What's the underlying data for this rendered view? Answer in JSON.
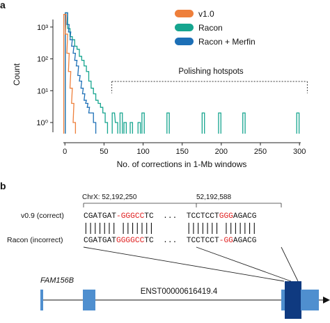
{
  "panel_a": {
    "label": "a",
    "ylabel": "Count",
    "xlabel": "No. of corrections in 1-Mb windows",
    "annotation": "Polishing hotspots",
    "colors": {
      "v1.0": "#ee7f3b",
      "Racon": "#16a58f",
      "Racon + Merfin": "#1c6fb6"
    }
  },
  "chart_data": {
    "type": "line",
    "xlim": [
      -10,
      315
    ],
    "ylim_log10": [
      -0.35,
      3.5
    ],
    "xticks": [
      "0",
      "50",
      "100",
      "150",
      "200",
      "250",
      "300"
    ],
    "yticks": [
      "10⁰",
      "10¹",
      "10²",
      "10³"
    ],
    "legend_placement": "top-right",
    "hotspot_range": [
      60,
      310
    ],
    "series": [
      {
        "name": "v1.0",
        "values": [
          [
            0,
            2500
          ],
          [
            2,
            600
          ],
          [
            4,
            150
          ],
          [
            6,
            40
          ],
          [
            8,
            12
          ],
          [
            10,
            4
          ],
          [
            12,
            1
          ]
        ]
      },
      {
        "name": "Racon",
        "values": [
          [
            2,
            2800
          ],
          [
            5,
            900
          ],
          [
            8,
            500
          ],
          [
            11,
            400
          ],
          [
            14,
            250
          ],
          [
            17,
            200
          ],
          [
            20,
            120
          ],
          [
            23,
            90
          ],
          [
            26,
            60
          ],
          [
            29,
            40
          ],
          [
            32,
            20
          ],
          [
            35,
            12
          ],
          [
            38,
            8
          ],
          [
            41,
            5
          ],
          [
            44,
            4
          ],
          [
            47,
            3
          ],
          [
            50,
            2
          ],
          [
            53,
            1
          ],
          [
            62,
            2
          ],
          [
            66,
            1
          ],
          [
            72,
            2
          ],
          [
            77,
            1
          ],
          [
            85,
            1
          ],
          [
            95,
            1
          ],
          [
            100,
            2
          ],
          [
            132,
            2
          ],
          [
            177,
            2
          ],
          [
            198,
            2
          ],
          [
            229,
            2
          ],
          [
            298,
            2
          ]
        ]
      },
      {
        "name": "Racon + Merfin",
        "values": [
          [
            2,
            2800
          ],
          [
            4,
            1200
          ],
          [
            6,
            700
          ],
          [
            8,
            400
          ],
          [
            10,
            250
          ],
          [
            12,
            150
          ],
          [
            14,
            90
          ],
          [
            16,
            60
          ],
          [
            18,
            30
          ],
          [
            20,
            20
          ],
          [
            22,
            12
          ],
          [
            24,
            8
          ],
          [
            26,
            5
          ],
          [
            28,
            4
          ],
          [
            30,
            3
          ],
          [
            32,
            2
          ],
          [
            35,
            2
          ],
          [
            38,
            1
          ]
        ]
      }
    ]
  },
  "panel_b": {
    "label": "b",
    "coord_left": "ChrX: 52,192,250",
    "coord_right": "52,192,588",
    "row1_label": "v0.9 (correct)",
    "row2_label": "Racon (incorrect)",
    "seq1": [
      {
        "t": "CGATGAT",
        "red": false
      },
      {
        "t": "-GGGCC",
        "red": true
      },
      {
        "t": "TC",
        "red": false
      },
      {
        "t": "  ...  ",
        "red": false
      },
      {
        "t": "TCCTCCT",
        "red": false
      },
      {
        "t": "GGG",
        "red": true
      },
      {
        "t": "AGACG",
        "red": false
      }
    ],
    "seq2": [
      {
        "t": "CGATGAT",
        "red": false
      },
      {
        "t": "GGGGCC",
        "red": true
      },
      {
        "t": "TC",
        "red": false
      },
      {
        "t": "  ...  ",
        "red": false
      },
      {
        "t": "TCCTCCT",
        "red": false
      },
      {
        "t": "-GG",
        "red": true
      },
      {
        "t": "AGACG",
        "red": false
      }
    ],
    "gene_name": "FAM156B",
    "transcript": "ENST00000616419.4",
    "colors": {
      "exon": "#4f8fcf",
      "highlight_exon": "#0f3a80",
      "red": "#e02020"
    }
  }
}
